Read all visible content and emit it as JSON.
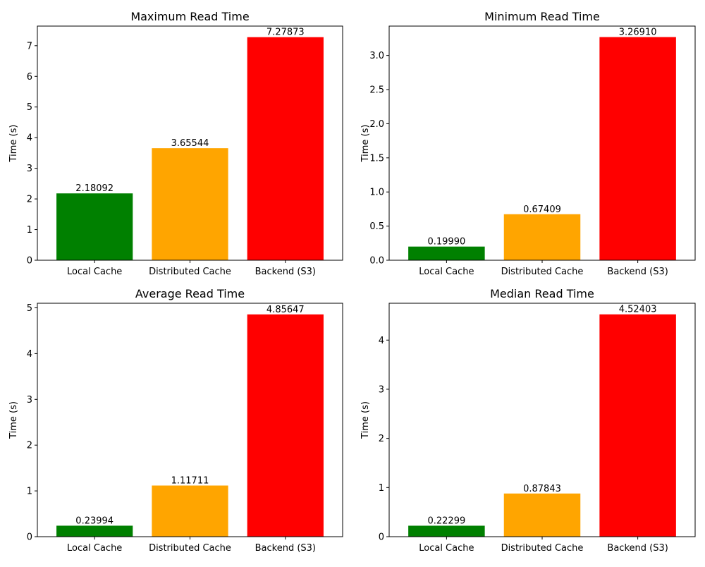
{
  "chart_data": [
    {
      "type": "bar",
      "title": "Maximum Read Time",
      "xlabel": "",
      "ylabel": "Time (s)",
      "categories": [
        "Local Cache",
        "Distributed Cache",
        "Backend (S3)"
      ],
      "values": [
        2.18092,
        3.65544,
        7.27873
      ],
      "value_labels": [
        "2.18092",
        "3.65544",
        "7.27873"
      ],
      "ylim": [
        0,
        7.64
      ],
      "yticks": [
        0,
        1,
        2,
        3,
        4,
        5,
        6,
        7
      ],
      "colors": [
        "#008000",
        "#ffa500",
        "#ff0000"
      ],
      "grid": false
    },
    {
      "type": "bar",
      "title": "Minimum Read Time",
      "xlabel": "",
      "ylabel": "Time (s)",
      "categories": [
        "Local Cache",
        "Distributed Cache",
        "Backend (S3)"
      ],
      "values": [
        0.1999,
        0.67409,
        3.2691
      ],
      "value_labels": [
        "0.19990",
        "0.67409",
        "3.26910"
      ],
      "ylim": [
        0,
        3.43
      ],
      "yticks": [
        "0.0",
        "0.5",
        "1.0",
        "1.5",
        "2.0",
        "2.5",
        "3.0"
      ],
      "colors": [
        "#008000",
        "#ffa500",
        "#ff0000"
      ],
      "grid": false
    },
    {
      "type": "bar",
      "title": "Average Read Time",
      "xlabel": "",
      "ylabel": "Time (s)",
      "categories": [
        "Local Cache",
        "Distributed Cache",
        "Backend (S3)"
      ],
      "values": [
        0.23994,
        1.11711,
        4.85647
      ],
      "value_labels": [
        "0.23994",
        "1.11711",
        "4.85647"
      ],
      "ylim": [
        0,
        5.1
      ],
      "yticks": [
        0,
        1,
        2,
        3,
        4,
        5
      ],
      "colors": [
        "#008000",
        "#ffa500",
        "#ff0000"
      ],
      "grid": false
    },
    {
      "type": "bar",
      "title": "Median Read Time",
      "xlabel": "",
      "ylabel": "Time (s)",
      "categories": [
        "Local Cache",
        "Distributed Cache",
        "Backend (S3)"
      ],
      "values": [
        0.22299,
        0.87843,
        4.52403
      ],
      "value_labels": [
        "0.22299",
        "0.87843",
        "4.52403"
      ],
      "ylim": [
        0,
        4.75
      ],
      "yticks": [
        0,
        1,
        2,
        3,
        4
      ],
      "colors": [
        "#008000",
        "#ffa500",
        "#ff0000"
      ],
      "grid": false
    }
  ]
}
